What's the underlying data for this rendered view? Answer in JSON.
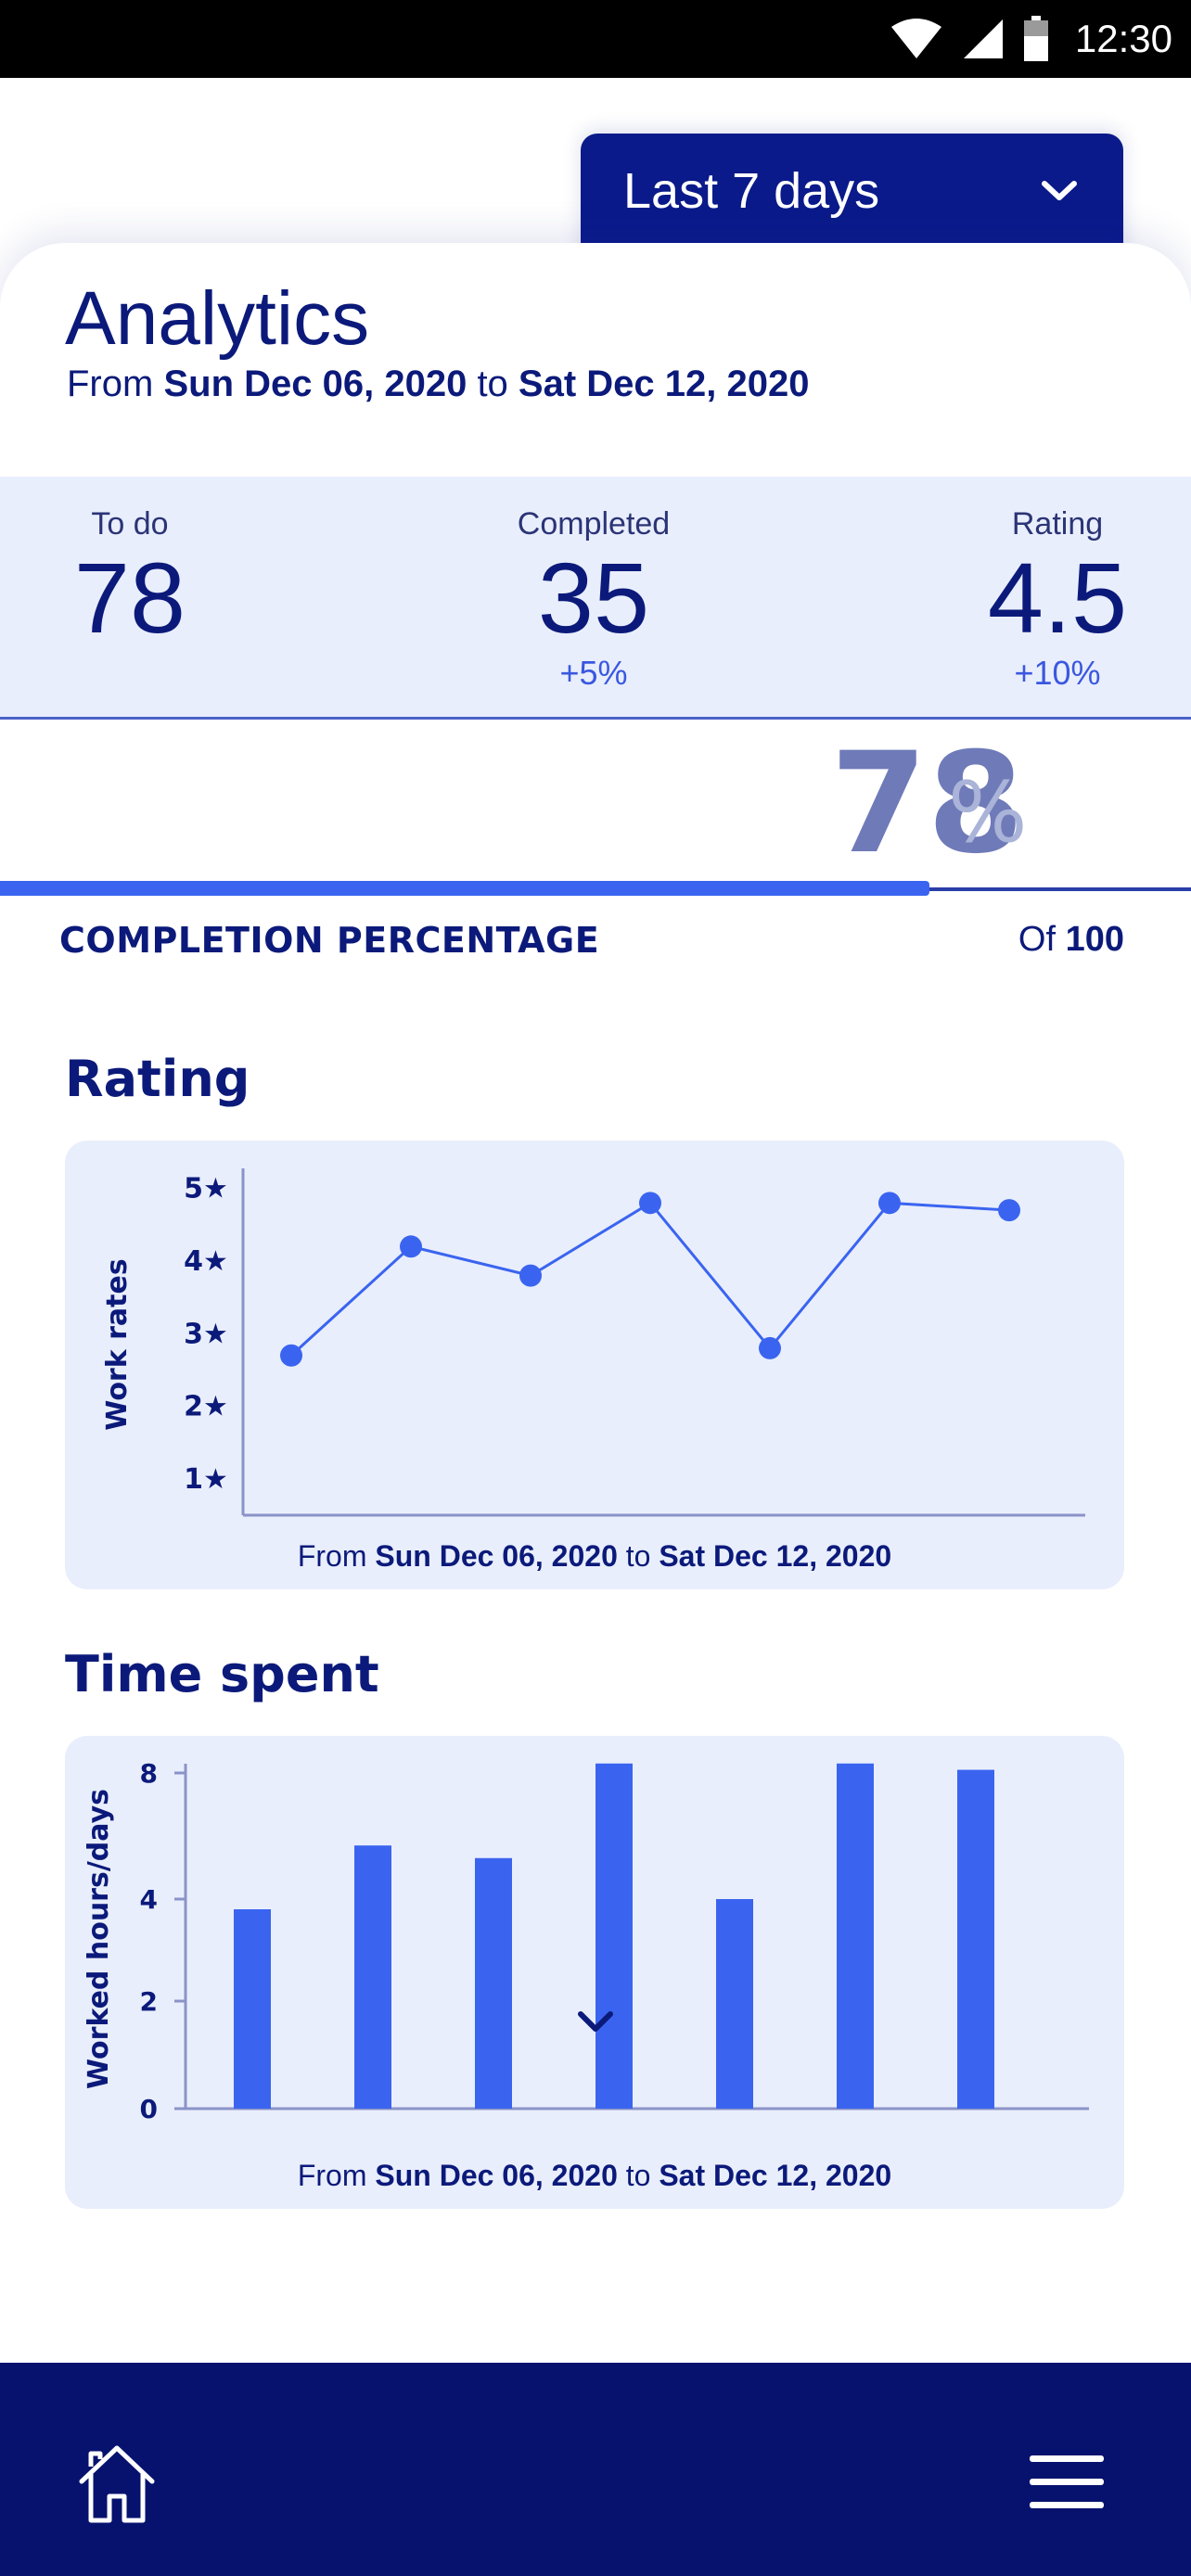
{
  "status_bar": {
    "time": "12:30"
  },
  "range_selector": {
    "label": "Last 7 days"
  },
  "header": {
    "title": "Analytics",
    "range_prefix": "From",
    "range_start": "Sun Dec 06, 2020",
    "range_mid": "to",
    "range_end": "Sat Dec 12, 2020"
  },
  "stats": {
    "todo": {
      "label": "To do",
      "value": "78"
    },
    "completed": {
      "label": "Completed",
      "value": "35",
      "change": "+5%"
    },
    "rating": {
      "label": "Rating",
      "value": "4.5",
      "change": "+10%"
    }
  },
  "completion": {
    "value": "78",
    "unit": "%",
    "fraction": 0.78,
    "label": "COMPLETION PERCENTAGE",
    "of_prefix": "Of",
    "of_total": "100"
  },
  "colors": {
    "primary": "#0b1a7a",
    "accent": "#3a64f0",
    "panel": "#e9eefc"
  },
  "rating_section": {
    "title": "Rating",
    "chart_data": {
      "type": "line",
      "ylabel": "Work rates",
      "yticks": [
        "1★",
        "2★",
        "3★",
        "4★",
        "5★"
      ],
      "ylim": [
        0.5,
        5.2
      ],
      "values": [
        2.7,
        4.2,
        3.8,
        4.8,
        2.8,
        4.8,
        4.7
      ],
      "caption_prefix": "From",
      "caption_start": "Sun Dec 06, 2020",
      "caption_mid": "to",
      "caption_end": "Sat Dec 12, 2020"
    }
  },
  "time_section": {
    "title": "Time spent",
    "chart_data": {
      "type": "bar",
      "ylabel": "Worked hours/days",
      "yticks": [
        "0",
        "2",
        "4",
        "8"
      ],
      "values": [
        3.8,
        5.7,
        5.3,
        8.3,
        4.0,
        8.3,
        8.1
      ],
      "caption_prefix": "From",
      "caption_start": "Sun Dec 06, 2020",
      "caption_mid": "to",
      "caption_end": "Sat Dec 12, 2020"
    }
  },
  "nav": {
    "home_icon": "home-icon",
    "menu_icon": "menu-icon"
  }
}
